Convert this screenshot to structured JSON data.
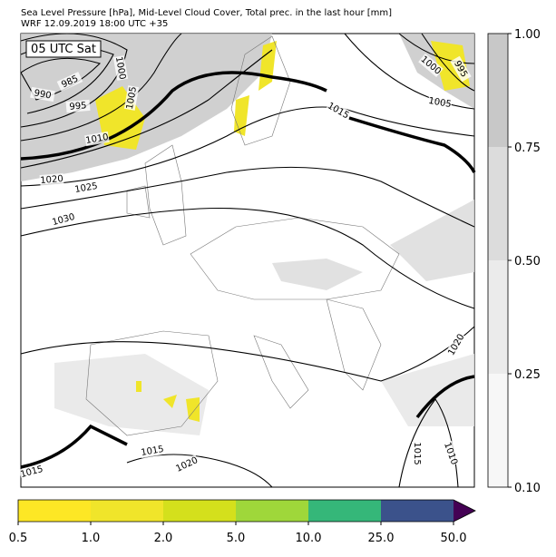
{
  "header": {
    "title": "Sea Level Pressure [hPa], Mid-Level Cloud Cover, Total prec. in the last hour [mm]",
    "subtitle": "WRF 12.09.2019 18:00 UTC +35"
  },
  "map": {
    "time_label": "05 UTC Sat",
    "contour_labels": [
      "985",
      "990",
      "995",
      "1000",
      "1005",
      "1010",
      "1020",
      "1025",
      "1030",
      "1015",
      "1000",
      "995",
      "1005",
      "1020",
      "1015",
      "1020",
      "1015",
      "1015",
      "1010"
    ]
  },
  "cloud_colorbar": {
    "ticks": [
      "0.10",
      "0.25",
      "0.50",
      "0.75",
      "1.00"
    ]
  },
  "precip_colorbar": {
    "ticks": [
      "0.5",
      "1.0",
      "2.0",
      "5.0",
      "10.0",
      "25.0",
      "50.0"
    ]
  }
}
